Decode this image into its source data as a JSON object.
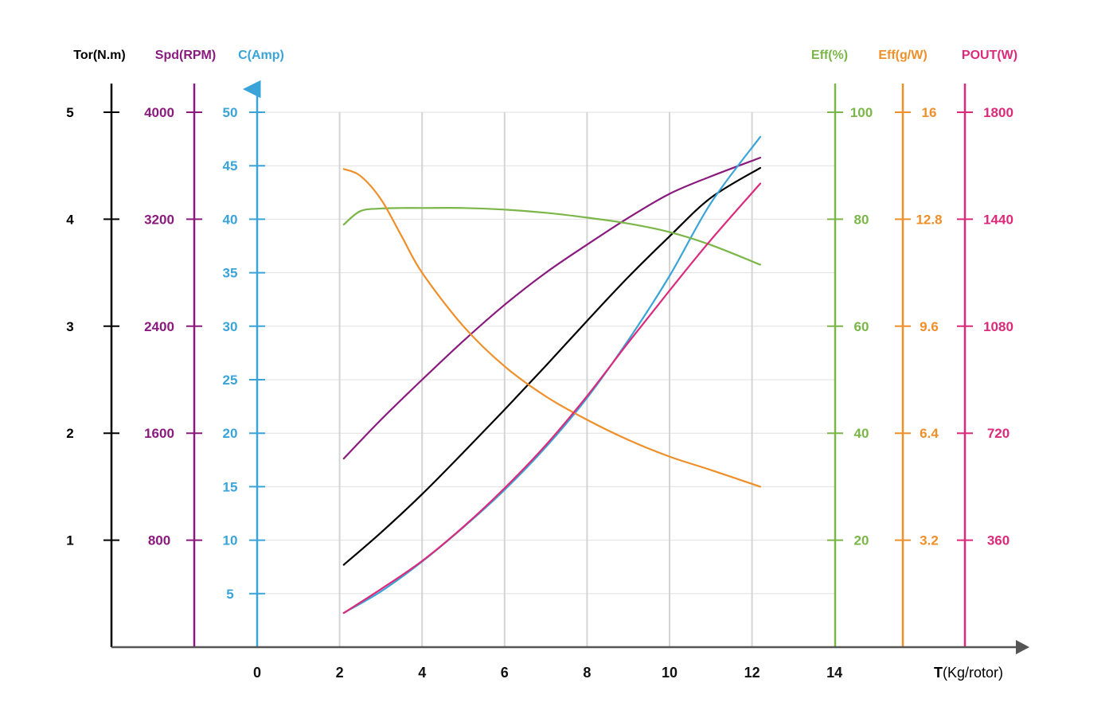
{
  "chart_data": {
    "type": "line",
    "xlabel": {
      "bold": "T",
      "rest": "(Kg/rotor)"
    },
    "x_ticks": [
      "0",
      "2",
      "4",
      "6",
      "8",
      "10",
      "12",
      "14"
    ],
    "xlim": [
      0,
      14
    ],
    "grid": true,
    "left_axes": [
      {
        "key": "tor",
        "title": "Tor(N.m)",
        "color": "#000000",
        "ticks": [
          "1",
          "2",
          "3",
          "4",
          "5"
        ],
        "range": [
          0,
          5
        ]
      },
      {
        "key": "spd",
        "title": "Spd(RPM)",
        "color": "#8a1a7e",
        "ticks": [
          "800",
          "1600",
          "2400",
          "3200",
          "4000"
        ],
        "range": [
          0,
          4000
        ]
      },
      {
        "key": "amp",
        "title": "C(Amp)",
        "color": "#3aa4d8",
        "ticks": [
          "5",
          "10",
          "15",
          "20",
          "25",
          "30",
          "35",
          "40",
          "45",
          "50"
        ],
        "range": [
          0,
          50
        ]
      }
    ],
    "right_axes": [
      {
        "key": "eff",
        "title": "Eff(%)",
        "color": "#7ab648",
        "ticks": [
          "20",
          "40",
          "60",
          "80",
          "100"
        ],
        "range": [
          0,
          100
        ]
      },
      {
        "key": "effg",
        "title": "Eff(g/W)",
        "color": "#ef8f2a",
        "ticks": [
          "3.2",
          "6.4",
          "9.6",
          "12.8",
          "16"
        ],
        "range": [
          0,
          16
        ]
      },
      {
        "key": "pout",
        "title": "POUT(W)",
        "color": "#db2a7c",
        "ticks": [
          "360",
          "720",
          "1080",
          "1440",
          "1800"
        ],
        "range": [
          0,
          1800
        ]
      }
    ],
    "series": [
      {
        "axis": "tor",
        "color": "#000000",
        "x": [
          2.1,
          3,
          4,
          5,
          6,
          7,
          8,
          9,
          10,
          11,
          12.2
        ],
        "y": [
          0.77,
          1.07,
          1.43,
          1.82,
          2.22,
          2.63,
          3.05,
          3.46,
          3.84,
          4.2,
          4.48
        ]
      },
      {
        "axis": "spd",
        "color": "#8a1a7e",
        "x": [
          2.1,
          3,
          4,
          5,
          6,
          7,
          8,
          9,
          10,
          11,
          12.2
        ],
        "y": [
          1410,
          1700,
          2000,
          2290,
          2560,
          2800,
          3010,
          3210,
          3390,
          3520,
          3660
        ]
      },
      {
        "axis": "amp",
        "color": "#3aa4d8",
        "x": [
          2.1,
          3,
          4,
          5,
          6,
          7,
          8,
          9,
          10,
          11,
          12.2
        ],
        "y": [
          3.2,
          5.2,
          8,
          11.2,
          14.7,
          18.7,
          23.3,
          28.7,
          34.7,
          41.5,
          47.7
        ]
      },
      {
        "axis": "eff",
        "color": "#7ab648",
        "x": [
          2.1,
          2.5,
          3,
          3.5,
          4,
          5,
          6,
          7,
          8,
          9,
          10,
          11,
          12.2
        ],
        "y": [
          79,
          81.5,
          82,
          82.1,
          82.1,
          82.1,
          81.8,
          81.2,
          80.3,
          79.2,
          77.6,
          75.2,
          71.5
        ]
      },
      {
        "axis": "effg",
        "color": "#ef8f2a",
        "x": [
          2.1,
          2.5,
          3,
          3.5,
          4,
          5,
          6,
          7,
          8,
          9,
          10,
          11,
          12.2
        ],
        "y": [
          14.3,
          14.1,
          13.4,
          12.3,
          11.2,
          9.6,
          8.4,
          7.5,
          6.8,
          6.2,
          5.7,
          5.3,
          4.8
        ]
      },
      {
        "axis": "pout",
        "color": "#db2a7c",
        "x": [
          2.1,
          3,
          4,
          5,
          6,
          7,
          8,
          9,
          10,
          11,
          12.2
        ],
        "y": [
          115,
          195,
          290,
          405,
          535,
          680,
          845,
          1025,
          1200,
          1370,
          1560
        ]
      }
    ]
  }
}
